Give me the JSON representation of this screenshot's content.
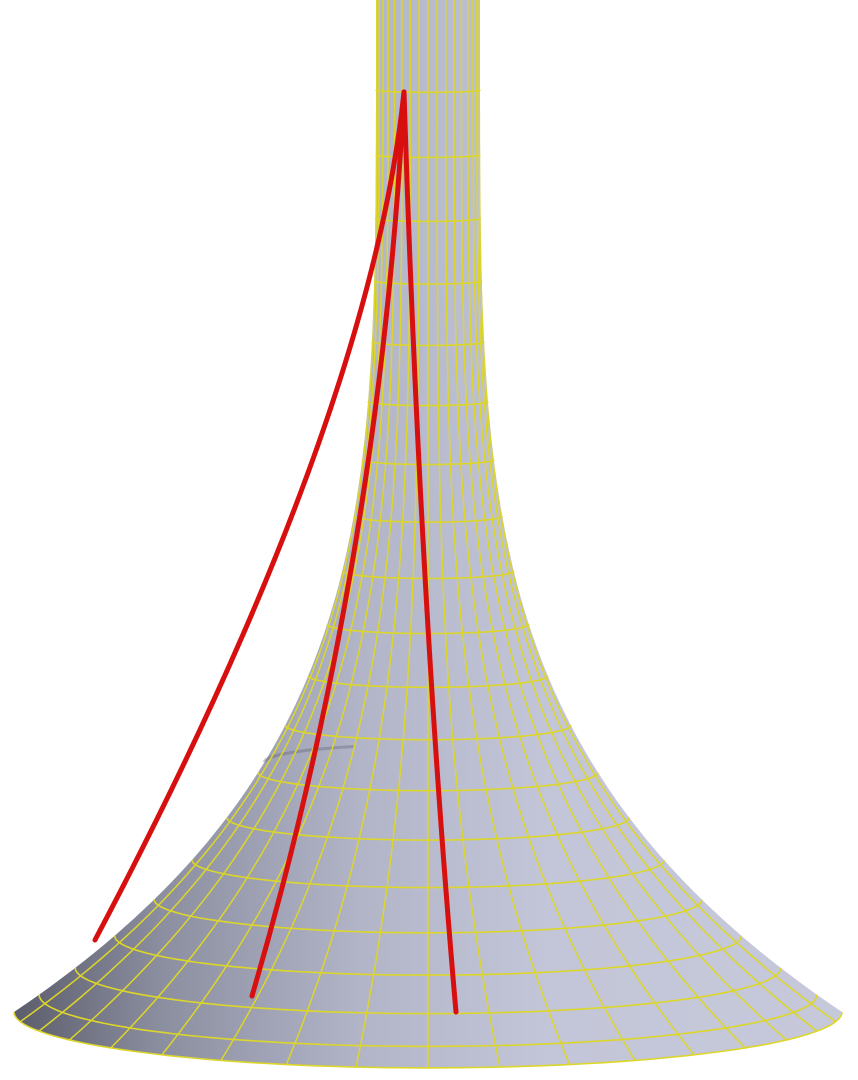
{
  "figure": {
    "subject": "pseudosphere-surface",
    "colors": {
      "background": "#ffffff",
      "surface_light": "#c3c6d8",
      "surface_mid": "#b2b5c8",
      "surface_dark": "#5b5d6c",
      "grid": "#dcd62a",
      "geodesic": "#d80f0f"
    },
    "grid": {
      "meridian_count": 36,
      "parallel_count": 20
    },
    "geodesics": {
      "count": 3
    }
  }
}
